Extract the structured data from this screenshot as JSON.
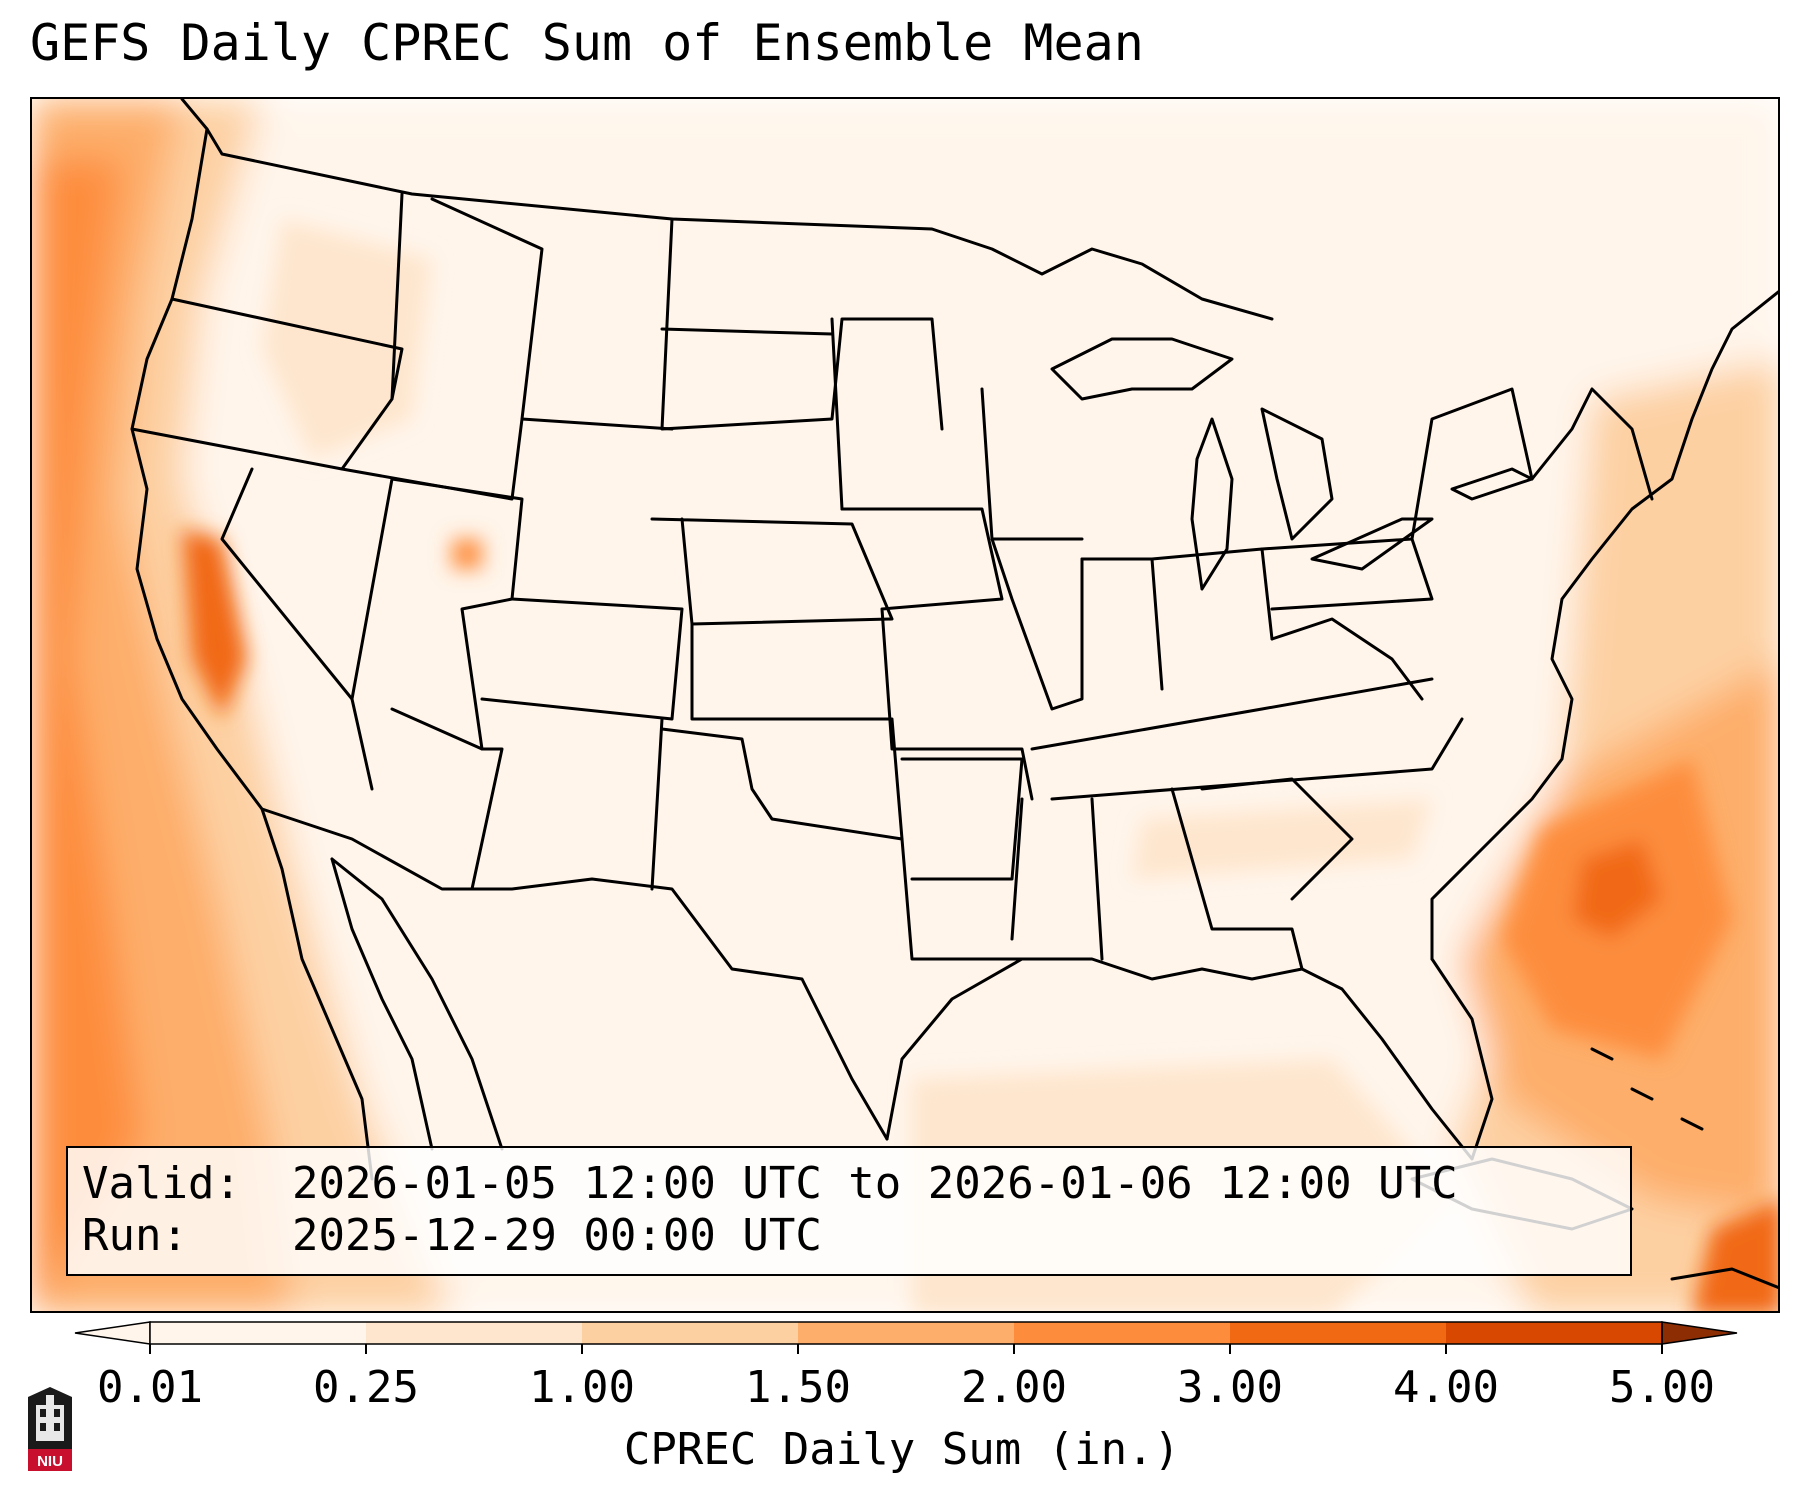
{
  "title": "GEFS Daily CPREC Sum of Ensemble Mean",
  "info": {
    "valid_key": "Valid:",
    "valid_value": "2026-01-05 12:00 UTC to 2026-01-06 12:00 UTC",
    "run_key": "Run:",
    "run_value": "2025-12-29 00:00 UTC"
  },
  "colorbar": {
    "label": "CPREC Daily Sum (in.)",
    "ticks": [
      "0.01",
      "0.25",
      "1.00",
      "1.50",
      "2.00",
      "3.00",
      "4.00",
      "5.00"
    ],
    "colors": [
      "#fff5eb",
      "#fee6ce",
      "#fdd0a2",
      "#fdae6b",
      "#fd8d3c",
      "#f16913",
      "#d94801",
      "#8c2d04"
    ],
    "extend": "both"
  },
  "logo": {
    "text": "NIU",
    "icon": "university-tower-icon"
  },
  "precip_regions": [
    {
      "name": "pacific-offshore-band",
      "level": "2.00-3.00"
    },
    {
      "name": "pacific-coast-band",
      "level": "1.00-1.50"
    },
    {
      "name": "southeast-atlantic-offshore",
      "level": "3.00-4.00"
    },
    {
      "name": "east-atlantic-band",
      "level": "1.00-2.00"
    },
    {
      "name": "gulf-of-mexico",
      "level": "0.01-0.25"
    },
    {
      "name": "caribbean",
      "level": "2.00-3.00"
    }
  ]
}
